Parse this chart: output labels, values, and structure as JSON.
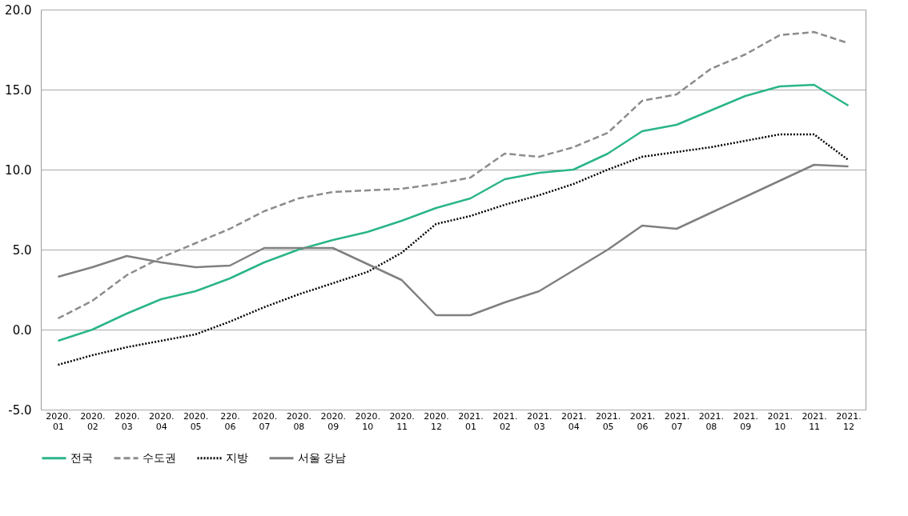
{
  "chart_data": {
    "type": "line",
    "categories": [
      "2020. 01",
      "2020. 02",
      "2020. 03",
      "2020. 04",
      "2020. 05",
      "220. 06",
      "2020. 07",
      "2020. 08",
      "2020. 09",
      "2020. 10",
      "2020. 11",
      "2020. 12",
      "2021. 01",
      "2021. 02",
      "2021. 03",
      "2021. 04",
      "2021. 05",
      "2021. 06",
      "2021. 07",
      "2021. 08",
      "2021. 09",
      "2021. 10",
      "2021. 11",
      "2021. 12"
    ],
    "series": [
      {
        "name": "전국",
        "color": "#2bb58a",
        "line_style": "solid",
        "values": [
          -0.7,
          0.0,
          1.0,
          1.9,
          2.4,
          3.2,
          4.2,
          5.0,
          5.6,
          6.1,
          6.8,
          7.6,
          8.2,
          9.4,
          9.8,
          10.0,
          11.0,
          12.4,
          12.8,
          13.7,
          14.6,
          15.2,
          15.3,
          14.0
        ]
      },
      {
        "name": "수도권",
        "color": "#8c8c8c",
        "line_style": "dashed",
        "values": [
          0.7,
          1.8,
          3.4,
          4.5,
          5.4,
          6.3,
          7.4,
          8.2,
          8.6,
          8.7,
          8.8,
          9.1,
          9.5,
          11.0,
          10.8,
          11.4,
          12.3,
          14.3,
          14.7,
          16.3,
          17.2,
          18.4,
          18.6,
          17.9
        ]
      },
      {
        "name": "지방",
        "color": "#000000",
        "line_style": "dotted",
        "values": [
          -2.2,
          -1.6,
          -1.1,
          -0.7,
          -0.3,
          0.5,
          1.4,
          2.2,
          2.9,
          3.6,
          4.8,
          6.6,
          7.1,
          7.8,
          8.4,
          9.1,
          10.0,
          10.8,
          11.1,
          11.4,
          11.8,
          12.2,
          12.2,
          10.6
        ]
      },
      {
        "name": "서울 강남",
        "color": "#808080",
        "line_style": "solid",
        "values": [
          3.3,
          3.9,
          4.6,
          4.2,
          3.9,
          4.0,
          5.1,
          5.1,
          5.1,
          4.1,
          3.1,
          0.9,
          0.9,
          1.7,
          2.4,
          3.7,
          5.0,
          6.5,
          6.3,
          7.3,
          8.3,
          9.3,
          10.3,
          10.2
        ]
      }
    ],
    "ylim": [
      -5,
      20
    ],
    "yticks": [
      {
        "value": -5,
        "label": "-5.0"
      },
      {
        "value": 0,
        "label": "0.0"
      },
      {
        "value": 5,
        "label": "5.0"
      },
      {
        "value": 10,
        "label": "10.0"
      },
      {
        "value": 15,
        "label": "15.0"
      },
      {
        "value": 20,
        "label": "20.0"
      }
    ],
    "grid": "y",
    "legend": "bottom",
    "marker": "none"
  }
}
